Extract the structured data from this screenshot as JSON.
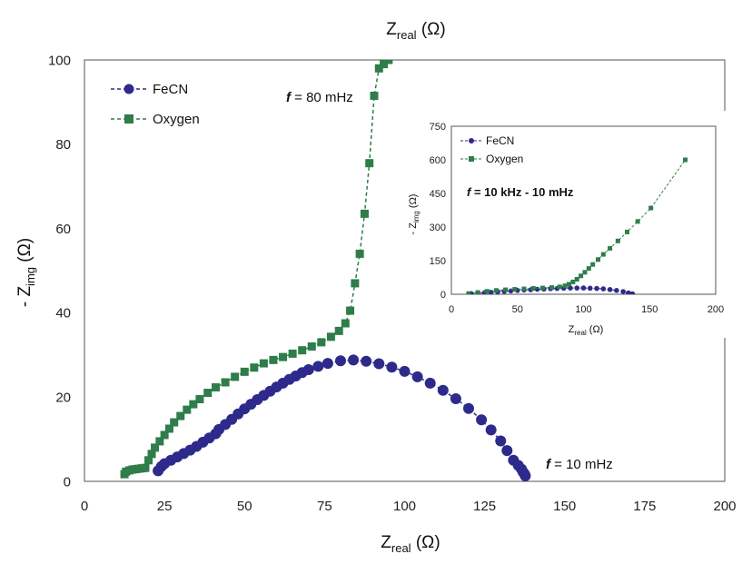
{
  "chart_data": [
    {
      "type": "scatter",
      "top_label": {
        "main": "Z",
        "sub": "real",
        "unit": " (Ω)"
      },
      "xlabel": {
        "main": "Z",
        "sub": "real",
        "unit": " (Ω)"
      },
      "ylabel": {
        "main": "- Z",
        "sub": "img",
        "unit": " (Ω)"
      },
      "xlim": [
        0,
        200
      ],
      "ylim": [
        0,
        100
      ],
      "xticks": [
        0,
        25,
        50,
        75,
        100,
        125,
        150,
        175,
        200
      ],
      "yticks": [
        0,
        20,
        40,
        60,
        80,
        100
      ],
      "legend_position": "top-left",
      "annotations": [
        {
          "prefix": "f",
          "text": " = 80 mHz",
          "x": 63,
          "y": 91
        },
        {
          "prefix": "f",
          "text": " = 10 mHz",
          "x": 143,
          "y": 3
        }
      ],
      "series": [
        {
          "name": "FeCN",
          "marker": "circle",
          "color": "#2e2a8c",
          "x": [
            23,
            24,
            25,
            27,
            29,
            31,
            33,
            35,
            37,
            39,
            41,
            42,
            44,
            46,
            48,
            50,
            52,
            54,
            56,
            58,
            60,
            62,
            64,
            66,
            68,
            70,
            73,
            76,
            80,
            84,
            88,
            92,
            96,
            100,
            104,
            108,
            112,
            116,
            120,
            124,
            127,
            130,
            132,
            134,
            135.5,
            136.5,
            137,
            137.5,
            137.7
          ],
          "y": [
            2.5,
            3.5,
            4.2,
            5,
            5.8,
            6.6,
            7.4,
            8.3,
            9.3,
            10.3,
            11.3,
            12.3,
            13.5,
            14.7,
            16,
            17.2,
            18.3,
            19.4,
            20.4,
            21.4,
            22.4,
            23.3,
            24.2,
            25,
            25.8,
            26.5,
            27.3,
            28,
            28.6,
            28.8,
            28.5,
            27.9,
            27.1,
            26.1,
            24.8,
            23.3,
            21.6,
            19.6,
            17.3,
            14.6,
            12.2,
            9.6,
            7.3,
            5,
            3.8,
            2.9,
            2.2,
            1.7,
            1.3
          ]
        },
        {
          "name": "Oxygen",
          "marker": "square",
          "color": "#2e7d4a",
          "x": [
            12.5,
            13,
            14,
            15,
            16,
            17,
            18,
            19,
            20,
            21,
            22,
            23.5,
            25,
            26.5,
            28,
            30,
            32,
            34,
            36,
            38.5,
            41,
            44,
            47,
            50,
            53,
            56,
            59,
            62,
            65,
            68,
            71,
            74,
            77,
            79.5,
            81.5,
            83,
            84.5,
            86,
            87.5,
            89,
            90.5,
            92,
            93.5,
            95
          ],
          "y": [
            1.7,
            2.3,
            2.6,
            2.8,
            2.9,
            3,
            3.1,
            3.2,
            5,
            6.5,
            8,
            9.5,
            11,
            12.5,
            14,
            15.5,
            17,
            18.3,
            19.5,
            21,
            22.3,
            23.5,
            24.8,
            26,
            27,
            28,
            28.8,
            29.5,
            30.3,
            31.1,
            32,
            33,
            34.3,
            35.7,
            37.5,
            40.5,
            47,
            54,
            63.5,
            75.5,
            91.5,
            98,
            99,
            100
          ]
        }
      ]
    },
    {
      "type": "scatter",
      "xlabel": {
        "main": "Z",
        "sub": "real",
        "unit": " (Ω)"
      },
      "ylabel": {
        "main": "- Z",
        "sub": "img",
        "unit": " (Ω)"
      },
      "xlim": [
        0,
        200
      ],
      "ylim": [
        0,
        750
      ],
      "xticks": [
        0,
        50,
        100,
        150,
        200
      ],
      "yticks": [
        0,
        150,
        300,
        450,
        600,
        750
      ],
      "legend_position": "top-left",
      "annotation": {
        "prefix": "f",
        "text": " = 10 kHz - 10 mHz"
      },
      "series": [
        {
          "name": "FeCN",
          "marker": "circle",
          "color": "#2e2a8c",
          "x": [
            15,
            20,
            25,
            30,
            35,
            40,
            45,
            50,
            55,
            60,
            65,
            70,
            75,
            80,
            85,
            90,
            95,
            100,
            105,
            110,
            115,
            120,
            125,
            130,
            134,
            137
          ],
          "y": [
            3,
            5,
            7,
            9,
            11,
            13,
            15,
            17,
            19,
            20,
            22,
            23,
            25,
            26,
            27,
            28,
            28,
            28,
            27,
            26,
            24,
            21,
            17,
            12,
            6,
            2
          ]
        },
        {
          "name": "Oxygen",
          "marker": "square",
          "color": "#2e7d4a",
          "x": [
            13,
            20,
            27,
            34,
            41,
            48,
            55,
            62,
            69,
            76,
            82,
            86,
            89,
            92,
            95,
            98,
            101,
            104,
            107,
            111,
            115,
            120,
            126,
            133,
            141,
            151,
            177
          ],
          "y": [
            3,
            8,
            13,
            17,
            20,
            22,
            24,
            26,
            28,
            30,
            33,
            38,
            45,
            55,
            67,
            82,
            98,
            115,
            133,
            155,
            178,
            205,
            238,
            278,
            325,
            385,
            600
          ]
        }
      ]
    }
  ]
}
